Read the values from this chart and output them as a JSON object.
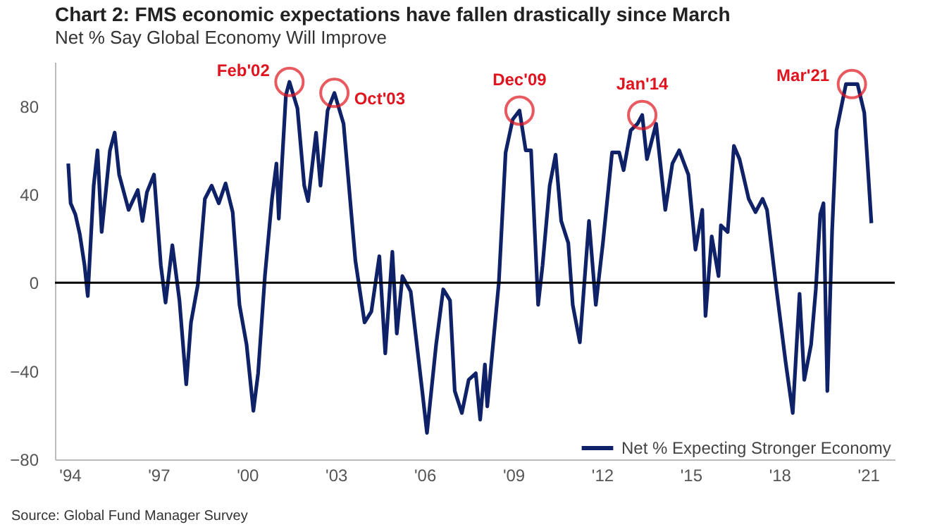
{
  "chart_data": {
    "type": "line",
    "title": "Chart 2: FMS economic expectations have fallen drastically since March",
    "subtitle": "Net % Say Global Economy Will Improve",
    "x": [
      1993.95,
      1994.03,
      1994.19,
      1994.34,
      1994.5,
      1994.61,
      1994.81,
      1994.94,
      1995.08,
      1995.24,
      1995.36,
      1995.52,
      1995.67,
      1995.83,
      1995.99,
      1996.3,
      1996.46,
      1996.61,
      1996.85,
      1997.08,
      1997.24,
      1997.47,
      1997.71,
      1997.94,
      1998.1,
      1998.33,
      1998.57,
      1998.8,
      1999.04,
      1999.27,
      1999.51,
      1999.74,
      1999.98,
      2000.21,
      2000.37,
      2000.6,
      2000.84,
      2000.99,
      2001.07,
      2001.31,
      2001.43,
      2001.7,
      2001.93,
      2002.06,
      2002.33,
      2002.48,
      2002.72,
      2002.95,
      2003.26,
      2003.66,
      2003.97,
      2004.2,
      2004.47,
      2004.67,
      2004.91,
      2005.06,
      2005.25,
      2005.53,
      2005.92,
      2006.08,
      2006.39,
      2006.63,
      2006.86,
      2007.02,
      2007.26,
      2007.49,
      2007.73,
      2007.88,
      2008.04,
      2008.12,
      2008.35,
      2008.51,
      2008.74,
      2008.98,
      2009.21,
      2009.42,
      2009.6,
      2009.84,
      2009.99,
      2010.23,
      2010.43,
      2010.62,
      2010.86,
      2011.01,
      2011.25,
      2011.56,
      2011.79,
      2012.03,
      2012.34,
      2012.58,
      2012.73,
      2012.97,
      2013.2,
      2013.36,
      2013.52,
      2013.83,
      2014.14,
      2014.38,
      2014.61,
      2014.92,
      2015.16,
      2015.39,
      2015.5,
      2015.71,
      2015.94,
      2016.02,
      2016.25,
      2016.46,
      2016.65,
      2016.96,
      2017.19,
      2017.43,
      2017.58,
      2017.9,
      2018.21,
      2018.45,
      2018.68,
      2018.84,
      2019.07,
      2019.23,
      2019.38,
      2019.49,
      2019.62,
      2019.78,
      2019.93,
      2020.25,
      2020.64,
      2020.87,
      2021.11
    ],
    "series": [
      {
        "name": "Net % Expecting Stronger Economy",
        "color": "#0f2167",
        "values": [
          54,
          36,
          31,
          22,
          8,
          -6,
          44,
          60,
          23,
          44,
          60,
          68,
          49,
          41,
          33,
          42,
          28,
          41,
          49,
          8,
          -9,
          17,
          -8,
          -46,
          -18,
          -1,
          38,
          44,
          36,
          45,
          32,
          -10,
          -28,
          -58,
          -41,
          3,
          38,
          54,
          29,
          85,
          91,
          79,
          44,
          37,
          68,
          44,
          78,
          86,
          72,
          10,
          -18,
          -13,
          12,
          -32,
          14,
          -23,
          3,
          -4,
          -49,
          -68,
          -28,
          -3,
          -8,
          -49,
          -59,
          -44,
          -41,
          -62,
          -37,
          -56,
          -23,
          0,
          59,
          74,
          78,
          60,
          60,
          -10,
          8,
          44,
          58,
          28,
          18,
          -10,
          -27,
          28,
          -10,
          18,
          59,
          59,
          51,
          69,
          72,
          76,
          56,
          72,
          33,
          54,
          60,
          49,
          15,
          33,
          -15,
          21,
          3,
          26,
          23,
          62,
          56,
          38,
          32,
          38,
          33,
          -3,
          -36,
          -59,
          -5,
          -44,
          -28,
          -3,
          31,
          36,
          -49,
          23,
          69,
          90,
          90,
          77,
          27
        ]
      }
    ],
    "xlim": [
      1993.5,
      2021.9
    ],
    "ylim": [
      -80,
      100
    ],
    "xticks": [
      {
        "value": 1994,
        "label": "'94"
      },
      {
        "value": 1997,
        "label": "'97"
      },
      {
        "value": 2000,
        "label": "'00"
      },
      {
        "value": 2003,
        "label": "'03"
      },
      {
        "value": 2006,
        "label": "'06"
      },
      {
        "value": 2009,
        "label": "'09"
      },
      {
        "value": 2012,
        "label": "'12"
      },
      {
        "value": 2015,
        "label": "'15"
      },
      {
        "value": 2018,
        "label": "'18"
      },
      {
        "value": 2021,
        "label": "'21"
      }
    ],
    "yticks": [
      -80,
      -40,
      0,
      40,
      80
    ],
    "ref_lines": [
      {
        "axis": "y",
        "value": 0,
        "color": "#000000"
      }
    ],
    "annotations": [
      {
        "text": "Feb'02",
        "x": 2001.43,
        "y": 91
      },
      {
        "text": "Oct'03",
        "x": 2002.95,
        "y": 86
      },
      {
        "text": "Dec'09",
        "x": 2009.21,
        "y": 78
      },
      {
        "text": "Jan'14",
        "x": 2013.36,
        "y": 76
      },
      {
        "text": "Mar'21",
        "x": 2020.45,
        "y": 90
      },
      "Source: Global Fund Manager Survey"
    ],
    "grid": false,
    "legend": "bottom right",
    "marker": "none",
    "line_style": "solid"
  }
}
